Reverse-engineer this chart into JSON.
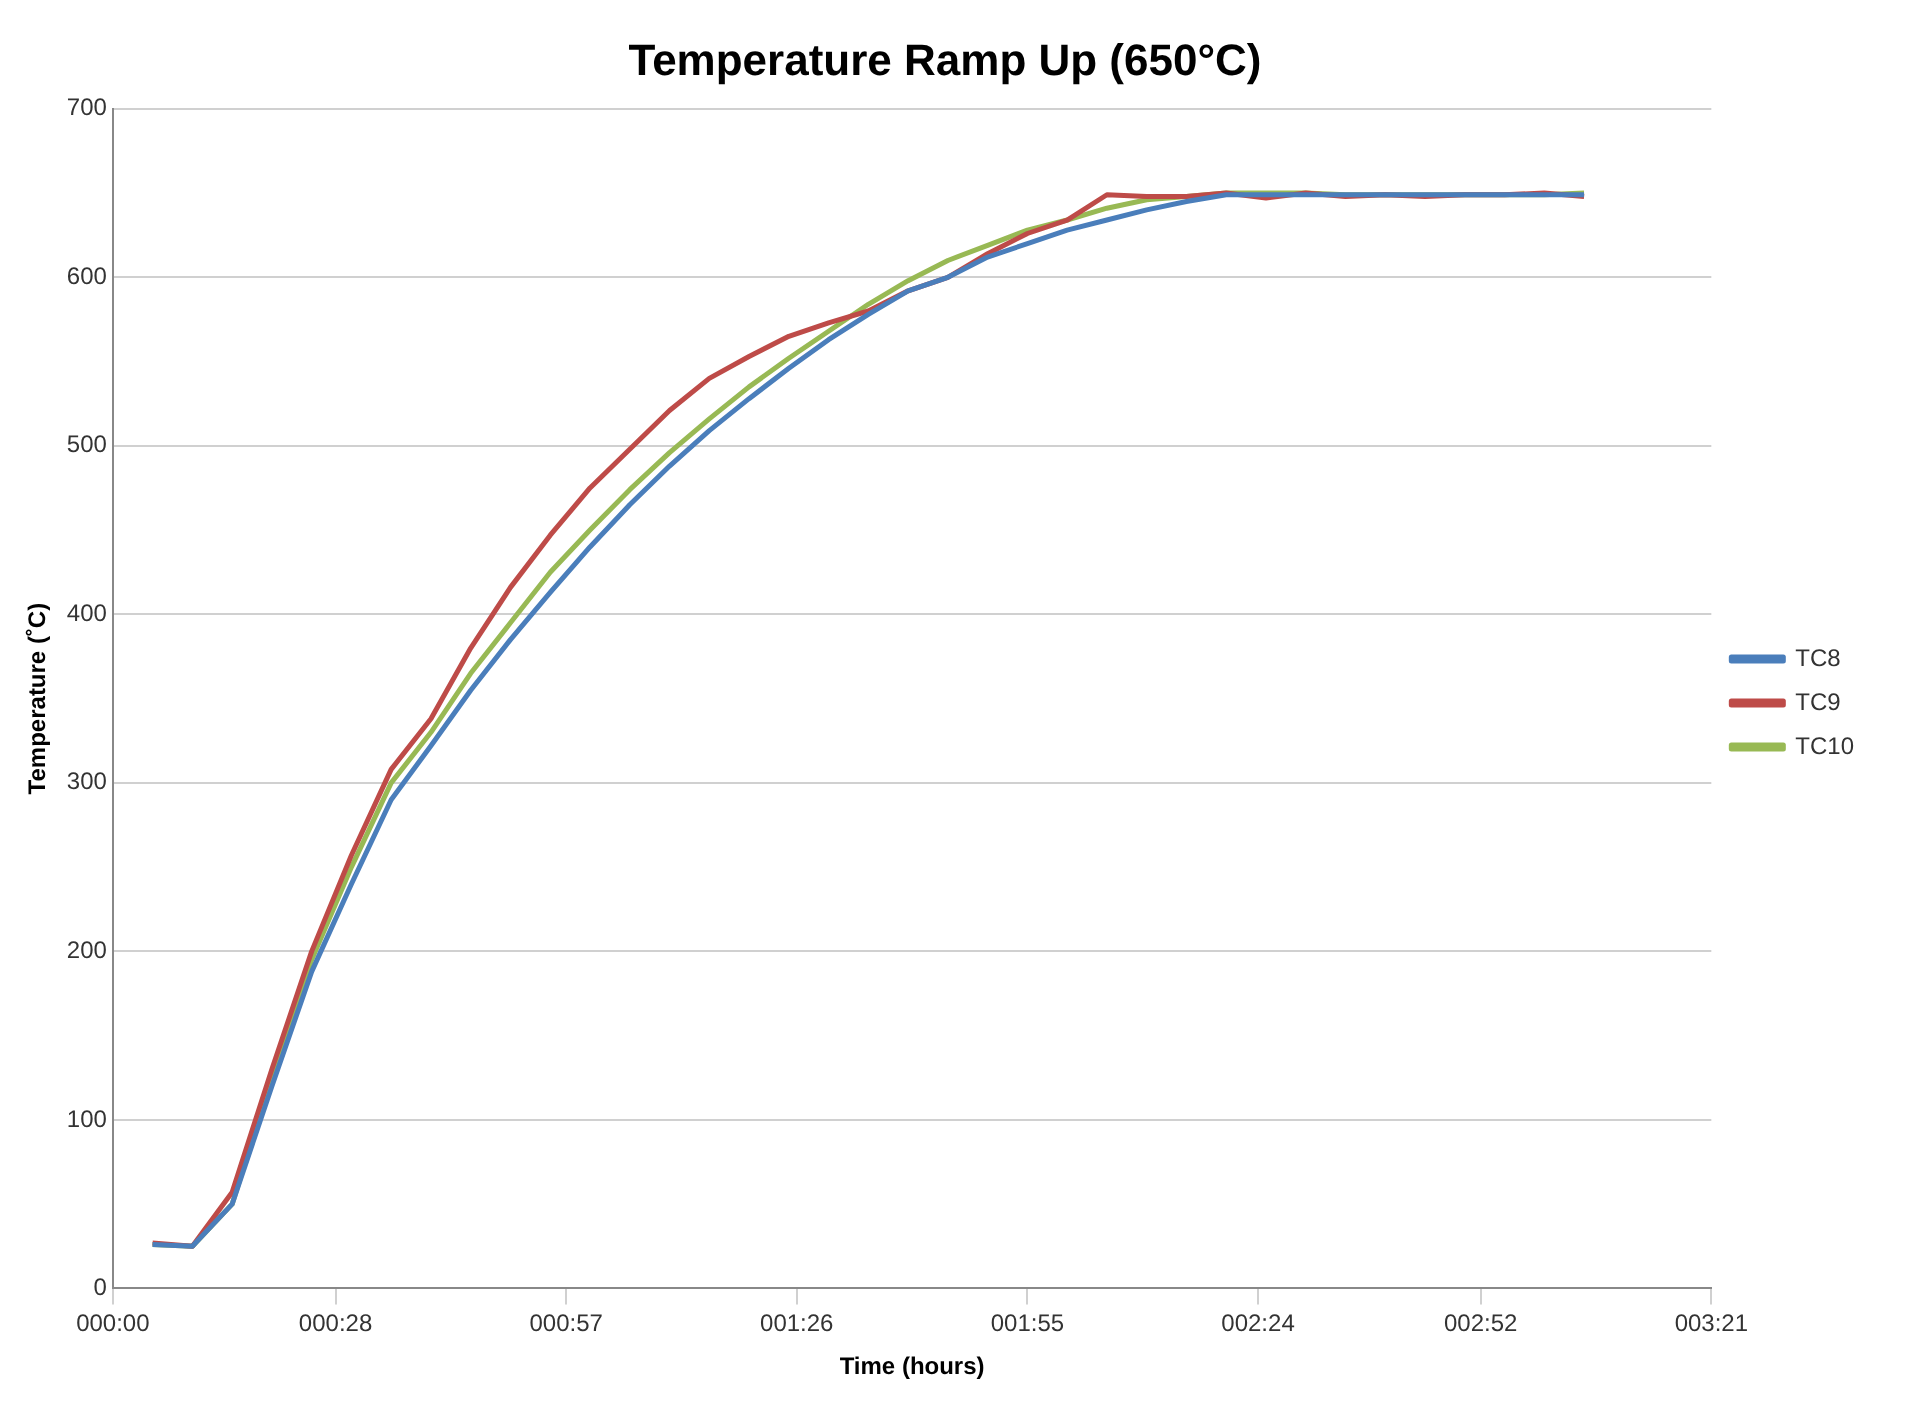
{
  "chart_data": {
    "type": "line",
    "title": "Temperature Ramp Up (650°C)",
    "xlabel": "Time (hours)",
    "ylabel": "Temperature (˚C)",
    "x": [
      0.0833,
      0.1667,
      0.25,
      0.3333,
      0.4167,
      0.5,
      0.5833,
      0.6667,
      0.75,
      0.8333,
      0.9167,
      1.0,
      1.0833,
      1.1667,
      1.25,
      1.3333,
      1.4167,
      1.5,
      1.5833,
      1.6667,
      1.75,
      1.8333,
      1.9167,
      2.0,
      2.0833,
      2.1667,
      2.25,
      2.3333,
      2.4167,
      2.5,
      2.5833,
      2.6667,
      2.75,
      2.8333,
      2.9167,
      3.0,
      3.0833
    ],
    "series": [
      {
        "name": "TC8",
        "color": "#4a7ebb",
        "values": [
          26,
          25,
          50,
          120,
          188,
          240,
          290,
          322,
          355,
          385,
          413,
          440,
          465,
          488,
          509,
          528,
          546,
          563,
          578,
          592,
          600,
          612,
          620,
          628,
          634,
          640,
          645,
          649,
          649,
          649,
          649,
          649,
          649,
          649,
          649,
          649,
          649
        ]
      },
      {
        "name": "TC9",
        "color": "#be4b48",
        "values": [
          27,
          25,
          57,
          130,
          200,
          257,
          308,
          338,
          380,
          416,
          447,
          475,
          498,
          521,
          540,
          553,
          565,
          573,
          580,
          592,
          600,
          614,
          626,
          634,
          649,
          648,
          648,
          650,
          647,
          650,
          648,
          649,
          648,
          649,
          649,
          650,
          648
        ]
      },
      {
        "name": "TC10",
        "color": "#98b954",
        "values": [
          26,
          25,
          50,
          125,
          195,
          250,
          300,
          330,
          365,
          395,
          425,
          450,
          474,
          496,
          516,
          535,
          552,
          568,
          584,
          598,
          610,
          619,
          628,
          634,
          641,
          646,
          648,
          650,
          650,
          650,
          649,
          649,
          649,
          649,
          649,
          649,
          650
        ]
      }
    ],
    "xlim": [
      0,
      3.35
    ],
    "xticks": [
      {
        "value": 0,
        "label": "000:00"
      },
      {
        "value": 0.4667,
        "label": "000:28"
      },
      {
        "value": 0.95,
        "label": "000:57"
      },
      {
        "value": 1.4333,
        "label": "001:26"
      },
      {
        "value": 1.9167,
        "label": "001:55"
      },
      {
        "value": 2.4,
        "label": "002:24"
      },
      {
        "value": 2.8667,
        "label": "002:52"
      },
      {
        "value": 3.35,
        "label": "003:21"
      }
    ],
    "ylim": [
      0,
      700
    ],
    "yticks": [
      0,
      100,
      200,
      300,
      400,
      500,
      600,
      700
    ],
    "grid": "y",
    "legend": "right",
    "marker": "none",
    "line_style": "solid"
  }
}
